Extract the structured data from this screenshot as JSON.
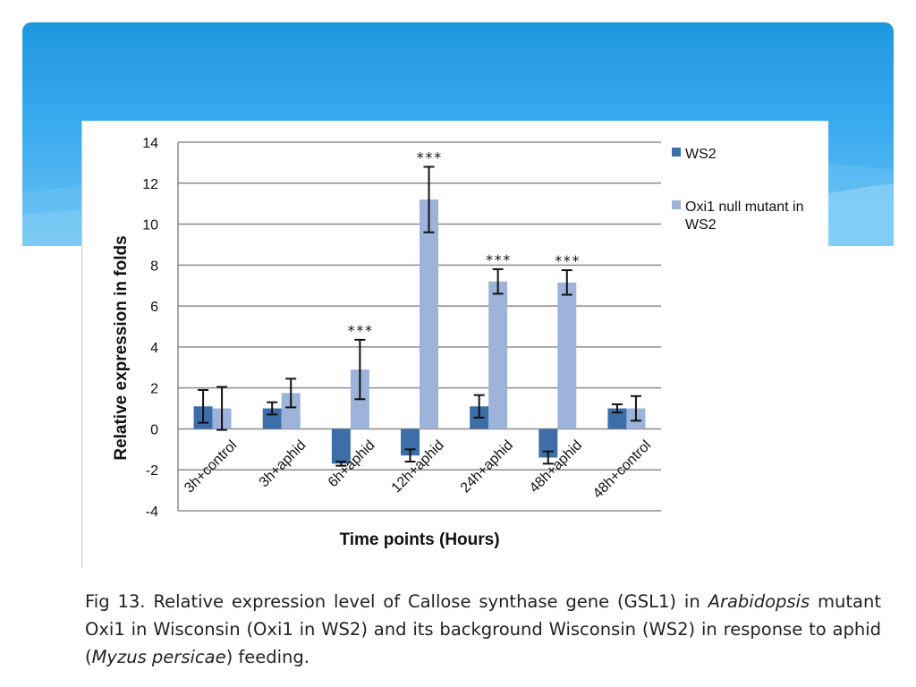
{
  "chart_data": {
    "type": "bar",
    "categories": [
      "3h+control",
      "3h+aphid",
      "6h+aphid",
      "12h+aphid",
      "24h+aphid",
      "48h+aphid",
      "48h+control"
    ],
    "series": [
      {
        "name": "WS2",
        "color": "#3d6ea8",
        "values": [
          1.1,
          1.0,
          -1.7,
          -1.3,
          1.1,
          -1.4,
          1.0
        ],
        "errors": [
          0.8,
          0.3,
          0.1,
          0.3,
          0.55,
          0.3,
          0.2
        ]
      },
      {
        "name": "Oxi1 null mutant in WS2",
        "color": "#9db3da",
        "values": [
          1.0,
          1.75,
          2.9,
          11.2,
          7.2,
          7.15,
          1.0
        ],
        "errors": [
          1.05,
          0.7,
          1.45,
          1.6,
          0.6,
          0.6,
          0.6
        ]
      }
    ],
    "significance": [
      "",
      "",
      "***",
      "***",
      "***",
      "***",
      ""
    ],
    "ylim": [
      -4,
      14
    ],
    "yticks": [
      -4,
      -2,
      0,
      2,
      4,
      6,
      8,
      10,
      12,
      14
    ],
    "xlabel": "Time points (Hours)",
    "ylabel": "Relative expression in folds",
    "legend_position": "right",
    "grid": true
  },
  "caption": {
    "prefix": "Fig 13. Relative expression level of Callose synthase gene (GSL1) in ",
    "genus": "Arabidopsis",
    "middle": " mutant Oxi1 in Wisconsin (Oxi1 in WS2) and its background Wisconsin (WS2) in response to aphid (",
    "species": "Myzus persicae",
    "suffix": ") feeding."
  }
}
